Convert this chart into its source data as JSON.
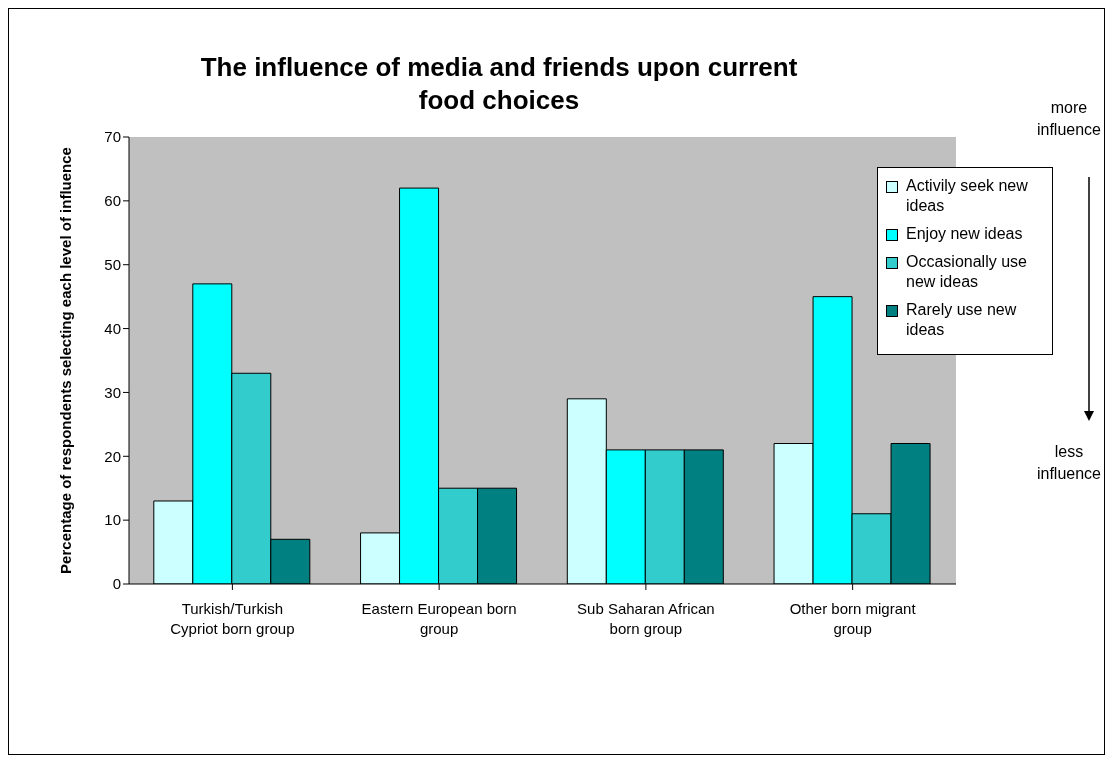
{
  "chart_data": {
    "type": "bar",
    "title": "The influence of media and friends upon current food choices",
    "ylabel": "Percentage of respondents selecting each level of influence",
    "categories": [
      "Turkish/Turkish Cypriot born group",
      "Eastern European born group",
      "Sub Saharan African born group",
      "Other born migrant group"
    ],
    "series": [
      {
        "name": "Activily seek new ideas",
        "color": "#ccffff",
        "values": [
          13,
          8,
          29,
          22
        ]
      },
      {
        "name": "Enjoy new ideas",
        "color": "#00ffff",
        "values": [
          47,
          62,
          21,
          45
        ]
      },
      {
        "name": "Occasionally use new ideas",
        "color": "#33cccc",
        "values": [
          33,
          15,
          21,
          11
        ]
      },
      {
        "name": "Rarely use new ideas",
        "color": "#008080",
        "values": [
          7,
          15,
          21,
          22
        ]
      }
    ],
    "ylim": [
      0,
      70
    ],
    "yticks": [
      0,
      10,
      20,
      30,
      40,
      50,
      60,
      70
    ],
    "legend": "right",
    "annotations": [
      "more influence",
      "less influence"
    ]
  }
}
